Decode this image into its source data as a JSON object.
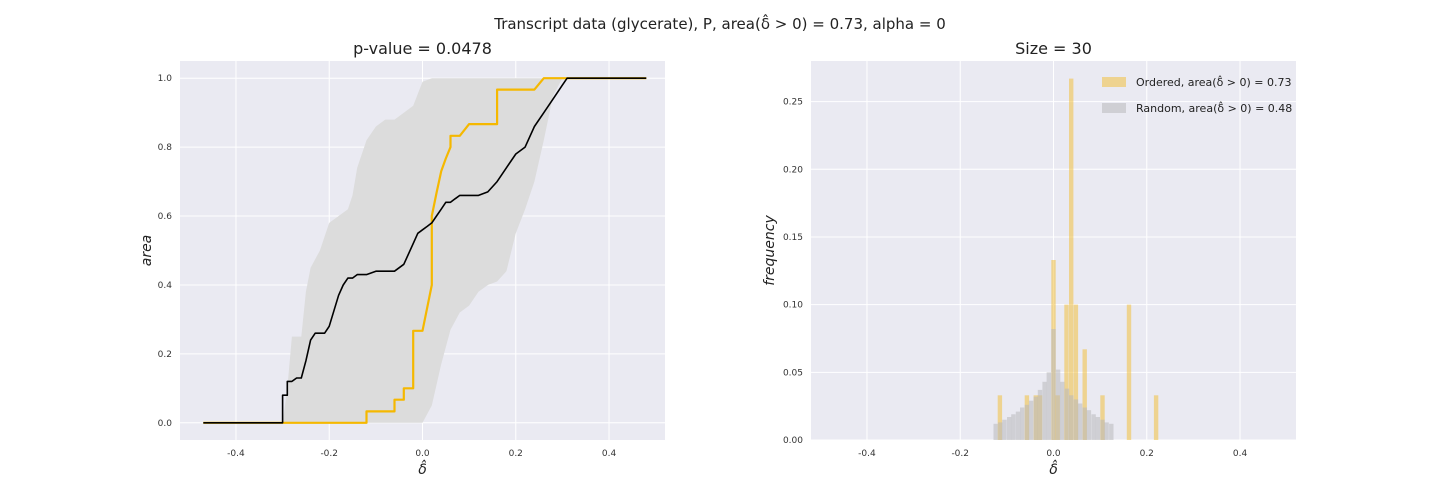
{
  "figure": {
    "suptitle": "Transcript data (glycerate), P, area(δ̂ > 0) = 0.73, alpha = 0"
  },
  "chart_data": [
    {
      "type": "line",
      "title": "p-value = 0.0478",
      "xlabel": "δ̂",
      "ylabel": "area",
      "xlim": [
        -0.52,
        0.52
      ],
      "ylim": [
        -0.05,
        1.05
      ],
      "xticks": [
        -0.4,
        -0.2,
        0.0,
        0.2,
        0.4
      ],
      "yticks": [
        0.0,
        0.2,
        0.4,
        0.6,
        0.8,
        1.0
      ],
      "grid": true,
      "band": {
        "x": [
          -0.47,
          -0.3,
          -0.29,
          -0.28,
          -0.26,
          -0.25,
          -0.24,
          -0.22,
          -0.2,
          -0.18,
          -0.16,
          -0.15,
          -0.14,
          -0.12,
          -0.1,
          -0.08,
          -0.06,
          -0.04,
          -0.02,
          0.0,
          0.02,
          0.04,
          0.06,
          0.08,
          0.1,
          0.12,
          0.14,
          0.16,
          0.18,
          0.2,
          0.22,
          0.24,
          0.26,
          0.28,
          0.3,
          0.31,
          0.48
        ],
        "lower": [
          0.0,
          0.0,
          0.0,
          0.0,
          0.0,
          0.0,
          0.0,
          0.0,
          0.0,
          0.0,
          0.0,
          0.0,
          0.0,
          0.0,
          0.0,
          0.0,
          0.0,
          0.0,
          0.0,
          0.0,
          0.05,
          0.17,
          0.27,
          0.32,
          0.34,
          0.38,
          0.4,
          0.41,
          0.44,
          0.55,
          0.62,
          0.7,
          0.82,
          0.95,
          1.0,
          1.0,
          1.0
        ],
        "upper": [
          0.0,
          0.0,
          0.1,
          0.25,
          0.25,
          0.38,
          0.45,
          0.5,
          0.58,
          0.6,
          0.62,
          0.66,
          0.74,
          0.82,
          0.86,
          0.88,
          0.88,
          0.9,
          0.92,
          0.99,
          1.0,
          1.0,
          1.0,
          1.0,
          1.0,
          1.0,
          1.0,
          1.0,
          1.0,
          1.0,
          1.0,
          1.0,
          1.0,
          1.0,
          1.0,
          1.0,
          1.0
        ]
      },
      "series": [
        {
          "color": "#f5b800",
          "x": [
            -0.47,
            -0.12,
            -0.12,
            -0.08,
            -0.08,
            -0.06,
            -0.06,
            -0.04,
            -0.04,
            -0.02,
            -0.02,
            0.0,
            0.0,
            0.02,
            0.02,
            0.03,
            0.04,
            0.05,
            0.06,
            0.06,
            0.08,
            0.08,
            0.1,
            0.1,
            0.16,
            0.16,
            0.2,
            0.2,
            0.24,
            0.24,
            0.26,
            0.26,
            0.48
          ],
          "y": [
            0.0,
            0.0,
            0.033,
            0.033,
            0.033,
            0.033,
            0.067,
            0.067,
            0.1,
            0.1,
            0.267,
            0.267,
            0.267,
            0.4,
            0.6,
            0.667,
            0.73,
            0.767,
            0.8,
            0.833,
            0.833,
            0.833,
            0.867,
            0.867,
            0.867,
            0.967,
            0.967,
            0.967,
            0.967,
            0.967,
            1.0,
            1.0,
            1.0
          ]
        },
        {
          "color": "#000000",
          "x": [
            -0.47,
            -0.3,
            -0.3,
            -0.29,
            -0.29,
            -0.28,
            -0.27,
            -0.26,
            -0.25,
            -0.24,
            -0.23,
            -0.22,
            -0.21,
            -0.2,
            -0.18,
            -0.17,
            -0.16,
            -0.15,
            -0.14,
            -0.13,
            -0.12,
            -0.1,
            -0.08,
            -0.06,
            -0.04,
            -0.02,
            -0.01,
            0.0,
            0.01,
            0.02,
            0.03,
            0.04,
            0.05,
            0.06,
            0.07,
            0.08,
            0.1,
            0.12,
            0.14,
            0.16,
            0.18,
            0.2,
            0.22,
            0.24,
            0.26,
            0.28,
            0.3,
            0.31,
            0.48
          ],
          "y": [
            0.0,
            0.0,
            0.08,
            0.08,
            0.12,
            0.12,
            0.13,
            0.13,
            0.18,
            0.24,
            0.26,
            0.26,
            0.26,
            0.28,
            0.37,
            0.4,
            0.42,
            0.42,
            0.43,
            0.43,
            0.43,
            0.44,
            0.44,
            0.44,
            0.46,
            0.52,
            0.55,
            0.56,
            0.57,
            0.58,
            0.6,
            0.62,
            0.64,
            0.64,
            0.65,
            0.66,
            0.66,
            0.66,
            0.67,
            0.7,
            0.74,
            0.78,
            0.8,
            0.86,
            0.9,
            0.94,
            0.98,
            1.0,
            1.0
          ]
        }
      ]
    },
    {
      "type": "bar",
      "title": "Size = 30",
      "xlabel": "δ̂",
      "ylabel": "frequency",
      "xlim": [
        -0.52,
        0.52
      ],
      "ylim": [
        0,
        0.28
      ],
      "xticks": [
        -0.4,
        -0.2,
        0.0,
        0.2,
        0.4
      ],
      "yticks": [
        0.0,
        0.05,
        0.1,
        0.15,
        0.2,
        0.25
      ],
      "grid": true,
      "legend_position": "top-right",
      "bin_width": 0.0095,
      "series": [
        {
          "name": "Ordered, area(δ̂ > 0) = 0.73",
          "color": "#f0c040",
          "x": [
            -0.115,
            -0.057,
            -0.038,
            -0.029,
            0.0,
            0.009,
            0.028,
            0.038,
            0.048,
            0.067,
            0.105,
            0.162,
            0.22
          ],
          "values": [
            0.033,
            0.033,
            0.033,
            0.033,
            0.133,
            0.033,
            0.1,
            0.267,
            0.1,
            0.067,
            0.033,
            0.1,
            0.033
          ]
        },
        {
          "name": "Random, area(δ̂ > 0) = 0.48",
          "color": "#b8b8bc",
          "x": [
            -0.124,
            -0.114,
            -0.105,
            -0.095,
            -0.086,
            -0.076,
            -0.067,
            -0.057,
            -0.048,
            -0.038,
            -0.029,
            -0.019,
            -0.01,
            0.0,
            0.01,
            0.019,
            0.029,
            0.038,
            0.048,
            0.057,
            0.067,
            0.076,
            0.086,
            0.095,
            0.105,
            0.114,
            0.124
          ],
          "values": [
            0.012,
            0.013,
            0.015,
            0.017,
            0.019,
            0.021,
            0.024,
            0.026,
            0.029,
            0.032,
            0.037,
            0.043,
            0.05,
            0.082,
            0.052,
            0.043,
            0.038,
            0.033,
            0.03,
            0.027,
            0.024,
            0.022,
            0.019,
            0.017,
            0.015,
            0.013,
            0.012
          ]
        }
      ]
    }
  ]
}
